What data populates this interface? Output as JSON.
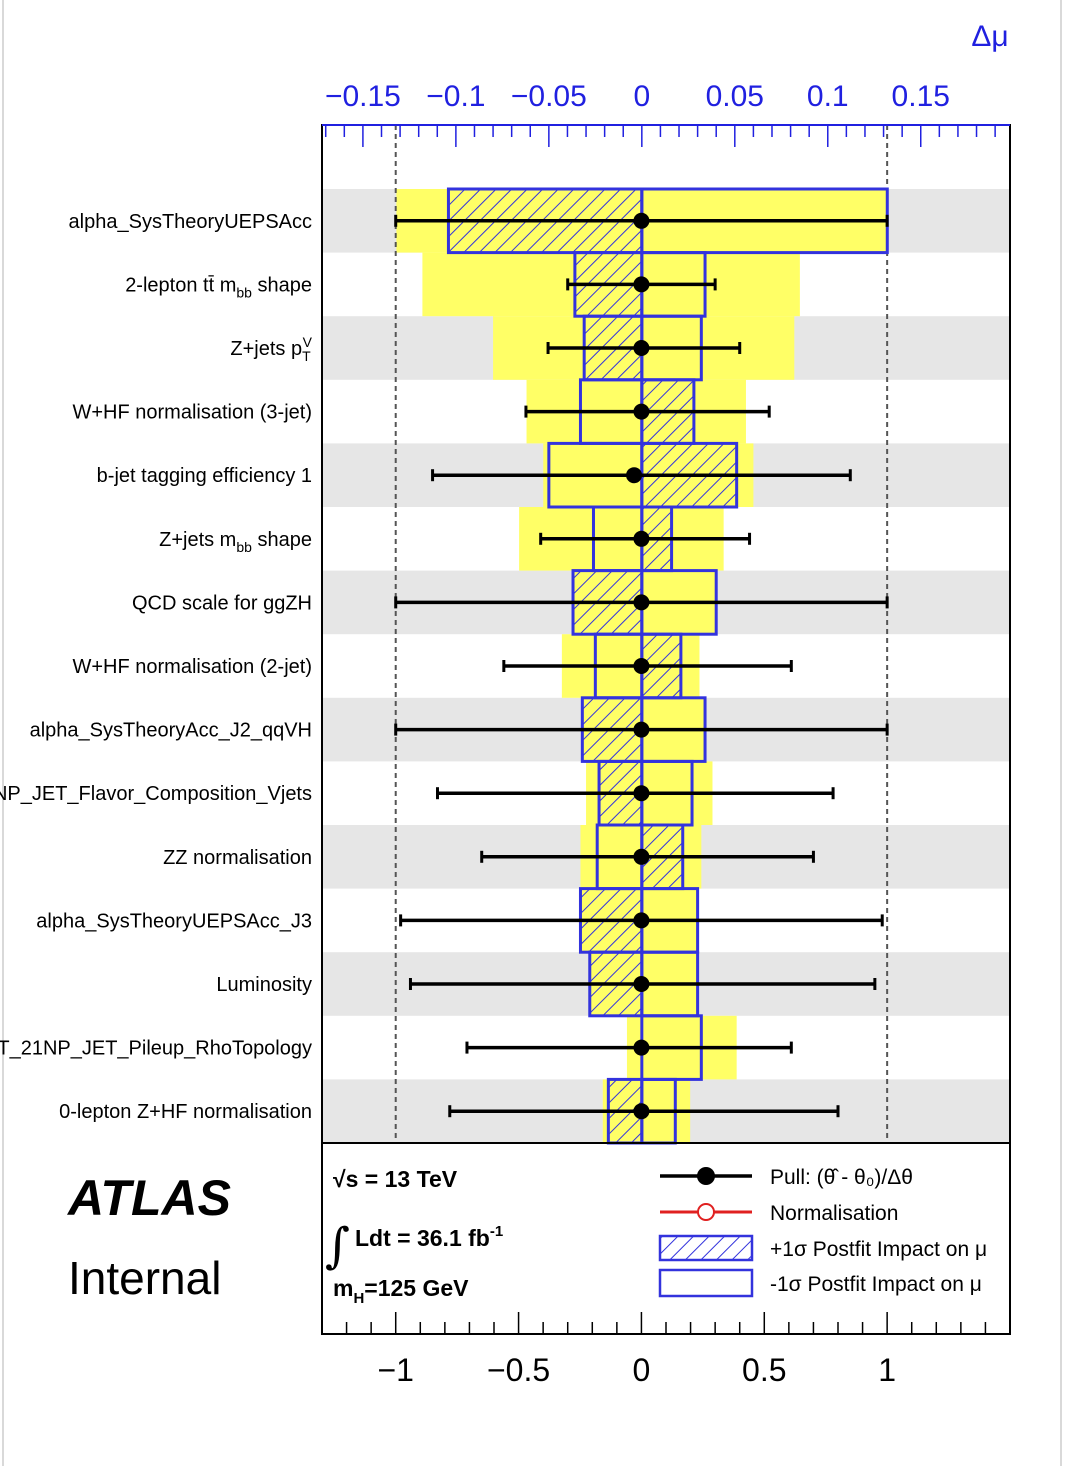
{
  "chart_data": {
    "type": "ranking",
    "top_axis": {
      "label": "Δμ",
      "range": [
        -0.172,
        0.198
      ],
      "tick_labels": [
        "−0.15",
        "−0.1",
        "−0.05",
        "0",
        "0.05",
        "0.1",
        "0.15"
      ],
      "tick_values": [
        -0.15,
        -0.1,
        -0.05,
        0,
        0.05,
        0.1,
        0.15
      ],
      "color": "#2020e0"
    },
    "bottom_axis": {
      "range": [
        -1.3,
        1.5
      ],
      "tick_labels": [
        "−1",
        "−0.5",
        "0",
        "0.5",
        "1"
      ],
      "tick_values": [
        -1,
        -0.5,
        0,
        0.5,
        1
      ]
    },
    "grid": "dashed lines at theta = -1, 1",
    "parameters": [
      {
        "label": "alpha_SysTheoryUEPSAcc",
        "pre_minus": -0.132,
        "pre_plus": 0.132,
        "post_plus": -0.104,
        "post_minus": 0.132,
        "pull": 0.0,
        "err_minus": -1.0,
        "err_plus": 1.0
      },
      {
        "label": "2-lepton tt̄ m_bb shape",
        "pre_minus": -0.118,
        "pre_plus": 0.085,
        "post_plus": -0.036,
        "post_minus": 0.034,
        "pull": 0.0,
        "err_minus": -0.3,
        "err_plus": 0.3
      },
      {
        "label": "Z+jets p_T^V",
        "pre_minus": -0.08,
        "pre_plus": 0.082,
        "post_plus": -0.031,
        "post_minus": 0.032,
        "pull": 0.0,
        "err_minus": -0.38,
        "err_plus": 0.4
      },
      {
        "label": "W+HF normalisation (3-jet)",
        "pre_minus": -0.062,
        "pre_plus": 0.056,
        "post_plus": 0.028,
        "post_minus": -0.033,
        "pull": 0.0,
        "err_minus": -0.47,
        "err_plus": 0.52
      },
      {
        "label": "b-jet tagging efficiency 1",
        "pre_minus": -0.053,
        "pre_plus": 0.06,
        "post_plus": 0.051,
        "post_minus": -0.05,
        "pull": -0.03,
        "err_minus": -0.85,
        "err_plus": 0.85
      },
      {
        "label": "Z+jets m_bb shape",
        "pre_minus": -0.066,
        "pre_plus": 0.044,
        "post_plus": 0.016,
        "post_minus": -0.026,
        "pull": 0.0,
        "err_minus": -0.41,
        "err_plus": 0.44
      },
      {
        "label": "QCD scale for ggZH",
        "pre_minus": -0.037,
        "pre_plus": 0.04,
        "post_plus": -0.037,
        "post_minus": 0.04,
        "pull": 0.0,
        "err_minus": -1.0,
        "err_plus": 1.0
      },
      {
        "label": "W+HF normalisation (2-jet)",
        "pre_minus": -0.043,
        "pre_plus": 0.031,
        "post_plus": 0.021,
        "post_minus": -0.025,
        "pull": 0.0,
        "err_minus": -0.56,
        "err_plus": 0.61
      },
      {
        "label": "alpha_SysTheoryAcc_J2_qqVH",
        "pre_minus": -0.032,
        "pre_plus": 0.034,
        "post_plus": -0.032,
        "post_minus": 0.034,
        "pull": 0.0,
        "err_minus": -1.0,
        "err_plus": 1.0
      },
      {
        "label": "NP_JET_Flavor_Composition_Vjets",
        "pre_minus": -0.03,
        "pre_plus": 0.038,
        "post_plus": -0.023,
        "post_minus": 0.027,
        "pull": 0.0,
        "err_minus": -0.83,
        "err_plus": 0.78
      },
      {
        "label": "ZZ normalisation",
        "pre_minus": -0.033,
        "pre_plus": 0.032,
        "post_plus": 0.022,
        "post_minus": -0.024,
        "pull": 0.0,
        "err_minus": -0.65,
        "err_plus": 0.7
      },
      {
        "label": "alpha_SysTheoryUEPSAcc_J3",
        "pre_minus": -0.033,
        "pre_plus": 0.03,
        "post_plus": -0.033,
        "post_minus": 0.03,
        "pull": 0.0,
        "err_minus": -0.98,
        "err_plus": 0.98
      },
      {
        "label": "Luminosity",
        "pre_minus": -0.028,
        "pre_plus": 0.03,
        "post_plus": -0.028,
        "post_minus": 0.03,
        "pull": 0.0,
        "err_minus": -0.94,
        "err_plus": 0.95
      },
      {
        "label": "T_21NP_JET_Pileup_RhoTopology",
        "pre_minus": -0.008,
        "pre_plus": 0.051,
        "post_plus": 0.0,
        "post_minus": 0.032,
        "pull": 0.0,
        "err_minus": -0.71,
        "err_plus": 0.61
      },
      {
        "label": "0-lepton Z+HF normalisation",
        "pre_minus": -0.021,
        "pre_plus": 0.026,
        "post_plus": -0.018,
        "post_minus": 0.018,
        "pull": 0.0,
        "err_minus": -0.78,
        "err_plus": 0.8
      }
    ],
    "legend": [
      {
        "name": "Pull: (θ̂ - θ₀)/Δθ",
        "style": "pull",
        "color": "#000000"
      },
      {
        "name": "Normalisation",
        "style": "norm",
        "color": "#e02020"
      },
      {
        "name": "+1σ Postfit Impact on μ",
        "style": "hatched",
        "color": "#3333dd"
      },
      {
        "name": "-1σ Postfit Impact on μ",
        "style": "open",
        "color": "#3333dd"
      }
    ],
    "colors": {
      "prefit": "#ffff66",
      "band": "#e6e6e6",
      "box": "#3333dd"
    }
  },
  "annotations": {
    "experiment": "ATLAS",
    "status": "Internal",
    "energy": "√s = 13 TeV",
    "lumi_prefix": "Ldt = 36.1 fb",
    "lumi_sup": "-1",
    "mass_prefix": "m",
    "mass_sub": "H",
    "mass_suffix": "=125 GeV"
  }
}
